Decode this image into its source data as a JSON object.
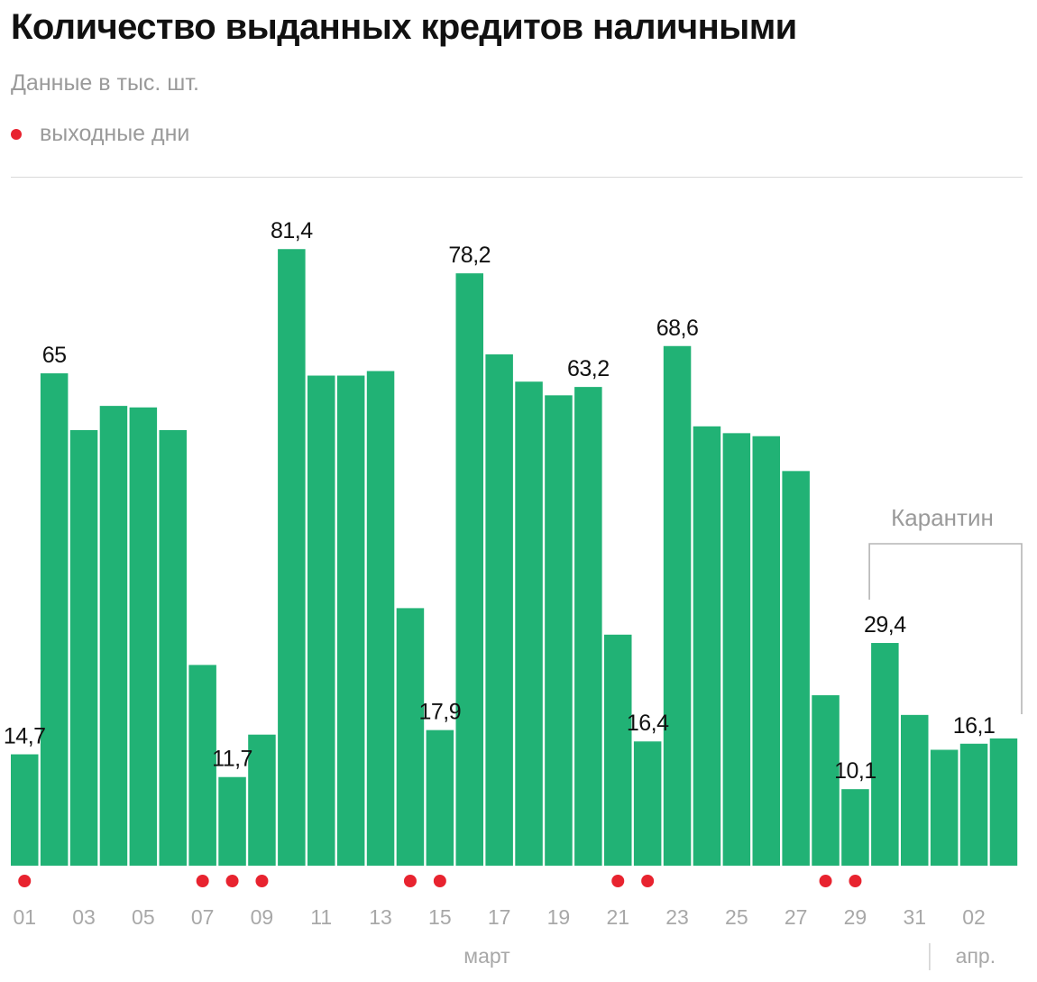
{
  "header": {
    "title": "Количество выданных кредитов наличными",
    "subtitle": "Данные в тыс. шт.",
    "legend_label": "выходные дни"
  },
  "colors": {
    "bar": "#21b275",
    "weekend_dot": "#e8232f",
    "label_text": "#111111",
    "axis_text": "#a8a8a8",
    "bracket": "#b5b5b5"
  },
  "chart_data": {
    "type": "bar",
    "subtitle": "Данные в тыс. шт.",
    "x": [
      "01",
      "02",
      "03",
      "04",
      "05",
      "06",
      "07",
      "08",
      "09",
      "10",
      "11",
      "12",
      "13",
      "14",
      "15",
      "16",
      "17",
      "18",
      "19",
      "20",
      "21",
      "22",
      "23",
      "24",
      "25",
      "26",
      "27",
      "28",
      "29",
      "30",
      "31",
      "01",
      "02",
      "03"
    ],
    "values": [
      14.7,
      65,
      57.5,
      60.7,
      60.5,
      57.5,
      26.5,
      11.7,
      17.3,
      81.4,
      64.7,
      64.7,
      65.3,
      34,
      17.9,
      78.2,
      67.5,
      63.9,
      62.1,
      63.2,
      30.5,
      16.4,
      68.6,
      58,
      57.1,
      56.7,
      52.1,
      22.5,
      10.1,
      29.4,
      19.9,
      15.3,
      16.1,
      16.8
    ],
    "data_labels": {
      "0": "14,7",
      "1": "65",
      "7": "11,7",
      "9": "81,4",
      "14": "17,9",
      "15": "78,2",
      "19": "63,2",
      "21": "16,4",
      "22": "68,6",
      "28": "10,1",
      "29": "29,4",
      "32": "16,1"
    },
    "tick_labels": [
      "01",
      "03",
      "05",
      "07",
      "09",
      "11",
      "13",
      "15",
      "17",
      "19",
      "21",
      "23",
      "25",
      "27",
      "29",
      "31",
      "02"
    ],
    "tick_indices": [
      0,
      2,
      4,
      6,
      8,
      10,
      12,
      14,
      16,
      18,
      20,
      22,
      24,
      26,
      28,
      30,
      32
    ],
    "weekend_indices": [
      0,
      6,
      7,
      8,
      13,
      14,
      20,
      21,
      27,
      28
    ],
    "month_labels": [
      {
        "label": "март",
        "from": 0,
        "to": 30
      },
      {
        "label": "апр.",
        "from": 31,
        "to": 33
      }
    ],
    "annotation": {
      "label": "Карантин",
      "from": 29,
      "to": 33
    },
    "legend": [
      {
        "name": "выходные дни",
        "marker": "red-dot"
      }
    ],
    "ylim": [
      0,
      85
    ],
    "grid": false
  }
}
